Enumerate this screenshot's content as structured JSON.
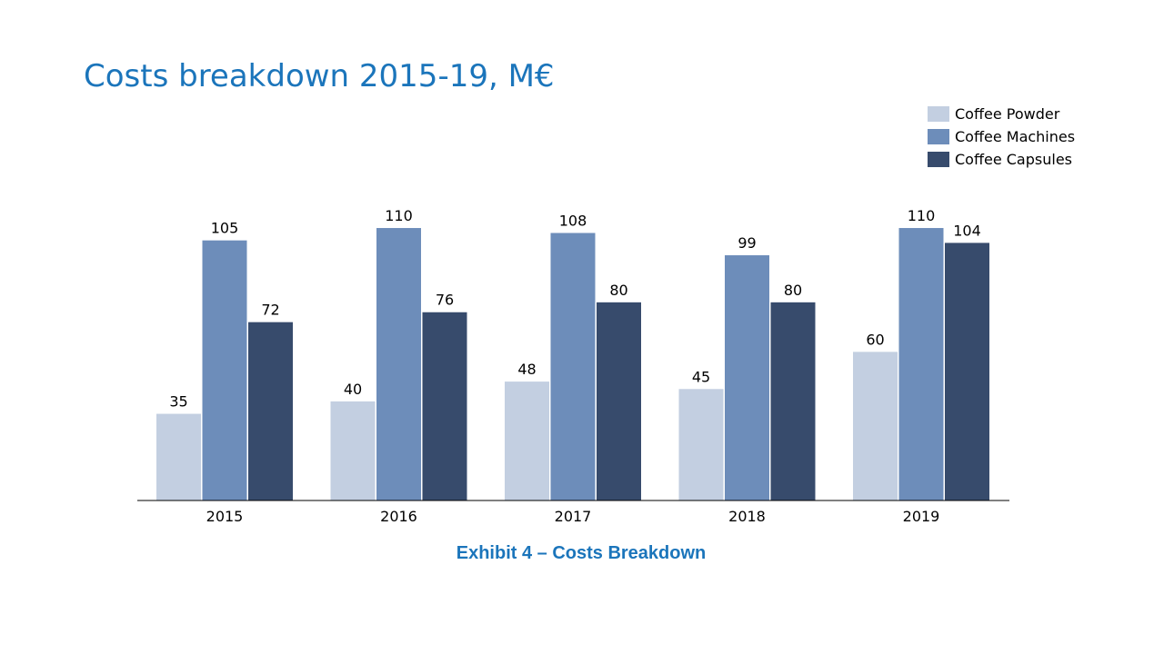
{
  "title": "Costs breakdown 2015-19, M€",
  "caption": "Exhibit 4 – Costs Breakdown",
  "chart_data": {
    "type": "bar",
    "categories": [
      "2015",
      "2016",
      "2017",
      "2018",
      "2019"
    ],
    "series": [
      {
        "name": "Coffee Powder",
        "color": "#c3cfe1",
        "values": [
          35,
          40,
          48,
          45,
          60
        ]
      },
      {
        "name": "Coffee Machines",
        "color": "#6d8dba",
        "values": [
          105,
          110,
          108,
          99,
          110
        ]
      },
      {
        "name": "Coffee Capsules",
        "color": "#374b6c",
        "values": [
          72,
          76,
          80,
          80,
          104
        ]
      }
    ],
    "ylim": [
      0,
      110
    ],
    "grid": false,
    "legend_position": "top-right"
  }
}
